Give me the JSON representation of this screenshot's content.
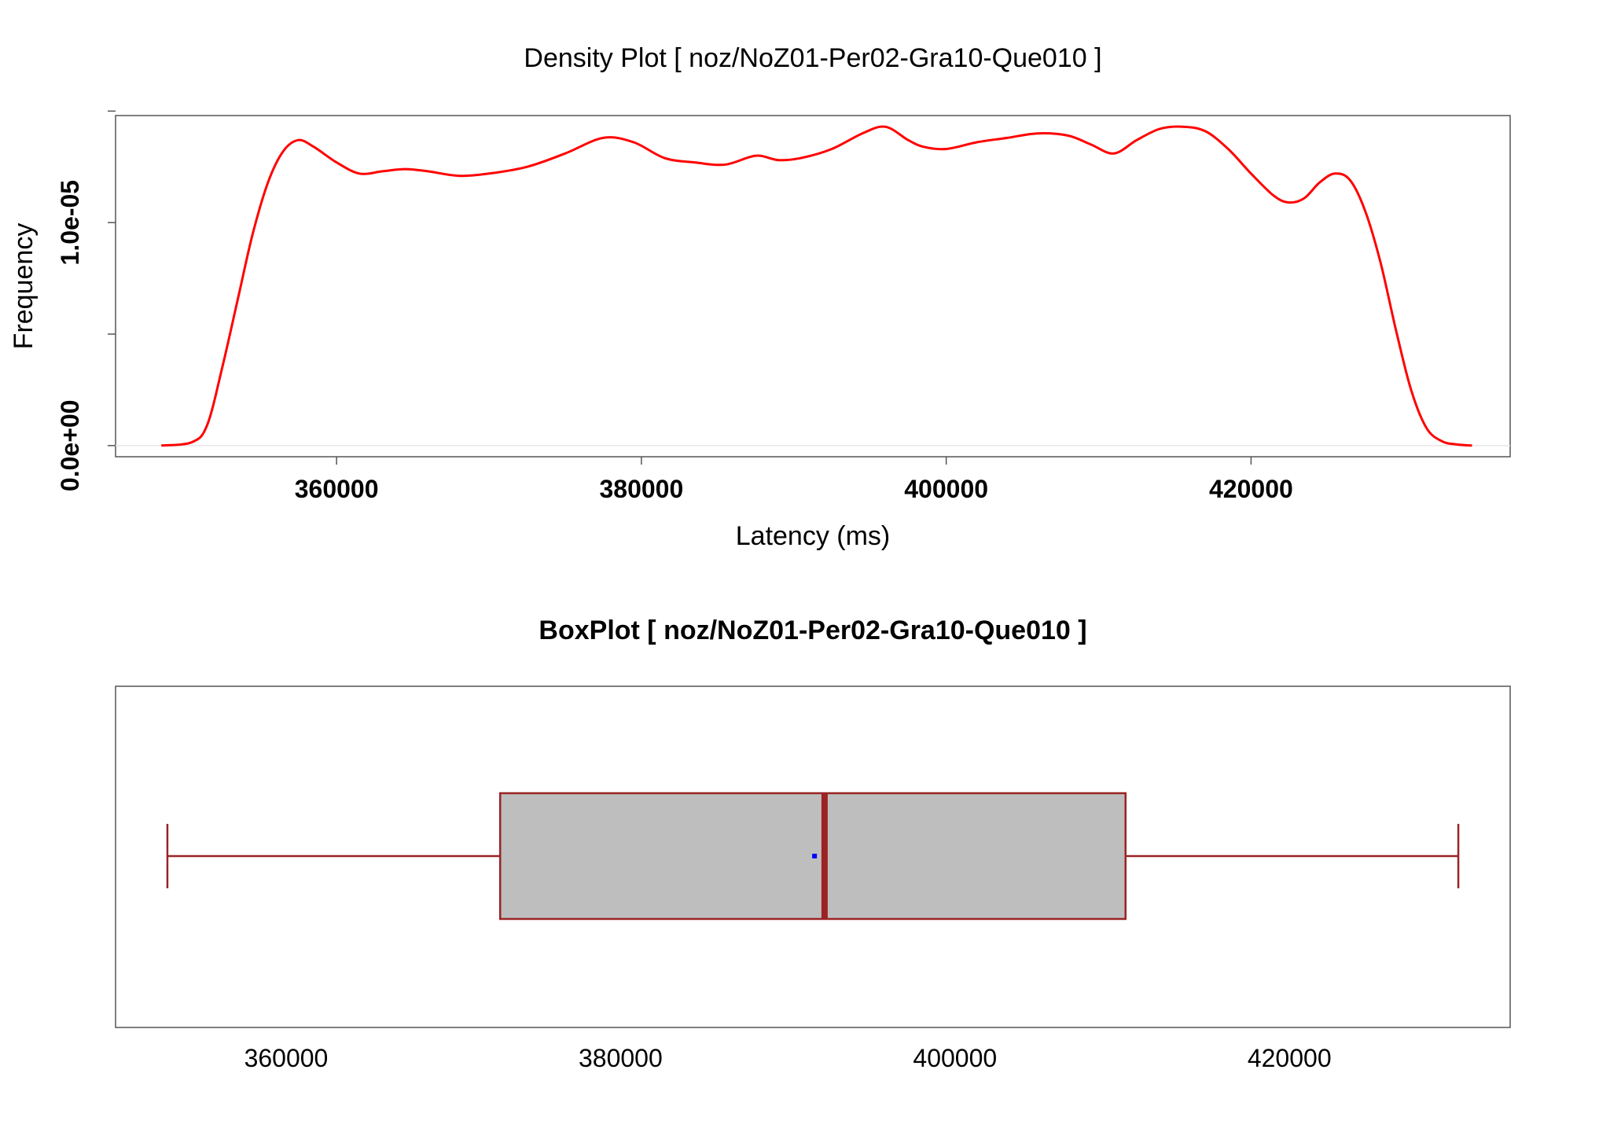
{
  "chart_data": [
    {
      "type": "line",
      "title": "Density Plot [ noz/NoZ01-Per02-Gra10-Que010 ]",
      "xlabel": "Latency (ms)",
      "ylabel": "Frequency",
      "xlim": [
        345500,
        437000
      ],
      "ylim": [
        -5e-07,
        1.48e-05
      ],
      "x_ticks": [
        {
          "value": 360000,
          "label": "360000"
        },
        {
          "value": 380000,
          "label": "380000"
        },
        {
          "value": 400000,
          "label": "400000"
        },
        {
          "value": 420000,
          "label": "420000"
        }
      ],
      "y_ticks": [
        {
          "value": 0.0,
          "label": "0.0e+00"
        },
        {
          "value": 5e-06,
          "label": ""
        },
        {
          "value": 1e-05,
          "label": "1.0e-05"
        },
        {
          "value": 1.5e-05,
          "label": ""
        }
      ],
      "baseline": 0,
      "baseline_color": "#e6e6e6",
      "line_color": "#ff0000",
      "series": [
        {
          "x": [
            348500,
            350500,
            351500,
            352500,
            353500,
            354500,
            355500,
            356500,
            357500,
            358500,
            360000,
            361500,
            363000,
            364500,
            366000,
            368000,
            370000,
            372500,
            375000,
            377500,
            379500,
            381500,
            383500,
            385500,
            387500,
            389000,
            390500,
            392500,
            394500,
            396000,
            397500,
            398500,
            400000,
            402000,
            404000,
            406000,
            408000,
            409500,
            411000,
            412500,
            414000,
            415500,
            417000,
            418500,
            420000,
            421500,
            422500,
            423500,
            424500,
            425500,
            426500,
            427500,
            428500,
            429500,
            430500,
            431500,
            432500,
            433500,
            434500
          ],
          "y": [
            0.0,
            1.5e-07,
            9e-07,
            3.5e-06,
            6.5e-06,
            9.5e-06,
            1.18e-05,
            1.32e-05,
            1.37e-05,
            1.34e-05,
            1.27e-05,
            1.22e-05,
            1.23e-05,
            1.24e-05,
            1.23e-05,
            1.21e-05,
            1.22e-05,
            1.25e-05,
            1.31e-05,
            1.38e-05,
            1.36e-05,
            1.29e-05,
            1.27e-05,
            1.26e-05,
            1.3e-05,
            1.28e-05,
            1.29e-05,
            1.33e-05,
            1.4e-05,
            1.43e-05,
            1.37e-05,
            1.34e-05,
            1.33e-05,
            1.36e-05,
            1.38e-05,
            1.4e-05,
            1.39e-05,
            1.35e-05,
            1.31e-05,
            1.37e-05,
            1.42e-05,
            1.43e-05,
            1.41e-05,
            1.33e-05,
            1.22e-05,
            1.12e-05,
            1.09e-05,
            1.11e-05,
            1.18e-05,
            1.22e-05,
            1.19e-05,
            1.05e-05,
            8.2e-06,
            5.2e-06,
            2.5e-06,
            8e-07,
            2e-07,
            5e-08,
            0.0
          ]
        }
      ]
    },
    {
      "type": "boxplot",
      "title": "BoxPlot [ noz/NoZ01-Per02-Gra10-Que010 ]",
      "xlim": [
        349800,
        433200
      ],
      "x_ticks": [
        {
          "value": 360000,
          "label": "360000"
        },
        {
          "value": 380000,
          "label": "380000"
        },
        {
          "value": 400000,
          "label": "400000"
        },
        {
          "value": 420000,
          "label": "420000"
        }
      ],
      "whisker_min": 352900,
      "q1": 372800,
      "median": 392200,
      "mean": 391600,
      "q3": 410200,
      "whisker_max": 430100,
      "box_fill": "#bebebe",
      "line_color": "#9b2323",
      "mean_color": "#0000ff"
    }
  ]
}
